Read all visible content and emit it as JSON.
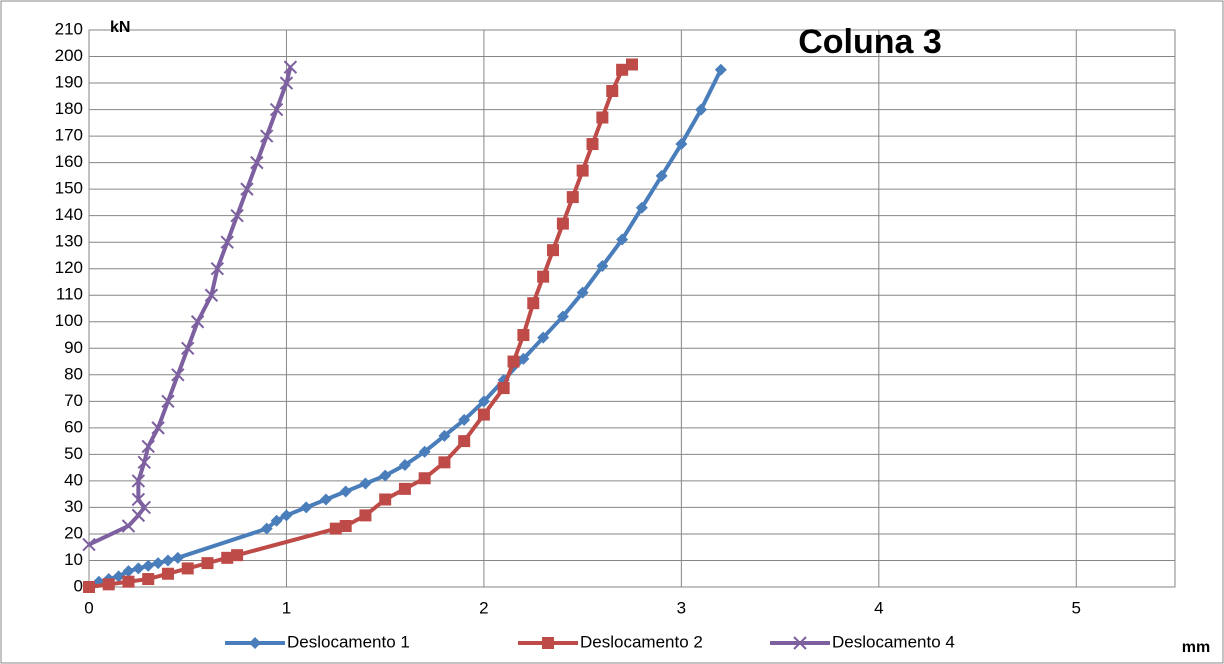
{
  "chart_data": {
    "type": "line",
    "title": "Coluna 3",
    "y_label": "kN",
    "x_label": "mm",
    "xlim": [
      0,
      5.5
    ],
    "ylim": [
      0,
      210
    ],
    "xticks": [
      0,
      1,
      2,
      3,
      4,
      5
    ],
    "yticks": [
      0,
      10,
      20,
      30,
      40,
      50,
      60,
      70,
      80,
      90,
      100,
      110,
      120,
      130,
      140,
      150,
      160,
      170,
      180,
      190,
      200,
      210
    ],
    "grid": true,
    "legend": "bottom",
    "series": [
      {
        "name": "Deslocamento 1",
        "color": "#4a7ebb",
        "marker": "diamond",
        "x": [
          0,
          0.05,
          0.1,
          0.15,
          0.2,
          0.25,
          0.3,
          0.35,
          0.4,
          0.45,
          0.9,
          0.95,
          1.0,
          1.1,
          1.2,
          1.3,
          1.4,
          1.5,
          1.6,
          1.7,
          1.8,
          1.9,
          2.0,
          2.1,
          2.2,
          2.3,
          2.4,
          2.5,
          2.6,
          2.7,
          2.8,
          2.9,
          3.0,
          3.1,
          3.2
        ],
        "values": [
          0,
          2,
          3,
          4,
          6,
          7,
          8,
          9,
          10,
          11,
          22,
          25,
          27,
          30,
          33,
          36,
          39,
          42,
          46,
          51,
          57,
          63,
          70,
          78,
          86,
          94,
          102,
          111,
          121,
          131,
          143,
          155,
          167,
          180,
          195
        ]
      },
      {
        "name": "Deslocamento 2",
        "color": "#be4b48",
        "marker": "square",
        "x": [
          0,
          0.1,
          0.2,
          0.3,
          0.4,
          0.5,
          0.6,
          0.7,
          0.75,
          1.25,
          1.3,
          1.4,
          1.5,
          1.6,
          1.7,
          1.8,
          1.9,
          2.0,
          2.1,
          2.15,
          2.2,
          2.25,
          2.3,
          2.35,
          2.4,
          2.45,
          2.5,
          2.55,
          2.6,
          2.65,
          2.7,
          2.75
        ],
        "values": [
          0,
          1,
          2,
          3,
          5,
          7,
          9,
          11,
          12,
          22,
          23,
          27,
          33,
          37,
          41,
          47,
          55,
          65,
          75,
          85,
          95,
          107,
          117,
          127,
          137,
          147,
          157,
          167,
          177,
          187,
          195,
          197
        ]
      },
      {
        "name": "Deslocamento 4",
        "color": "#7d60a0",
        "marker": "x",
        "x": [
          0,
          0.2,
          0.25,
          0.28,
          0.25,
          0.25,
          0.28,
          0.3,
          0.35,
          0.4,
          0.45,
          0.5,
          0.55,
          0.62,
          0.65,
          0.7,
          0.75,
          0.8,
          0.85,
          0.9,
          0.95,
          1.0,
          1.02
        ],
        "values": [
          16,
          23,
          27,
          30,
          33,
          40,
          47,
          53,
          60,
          70,
          80,
          90,
          100,
          110,
          120,
          130,
          140,
          150,
          160,
          170,
          180,
          190,
          196
        ]
      }
    ]
  }
}
